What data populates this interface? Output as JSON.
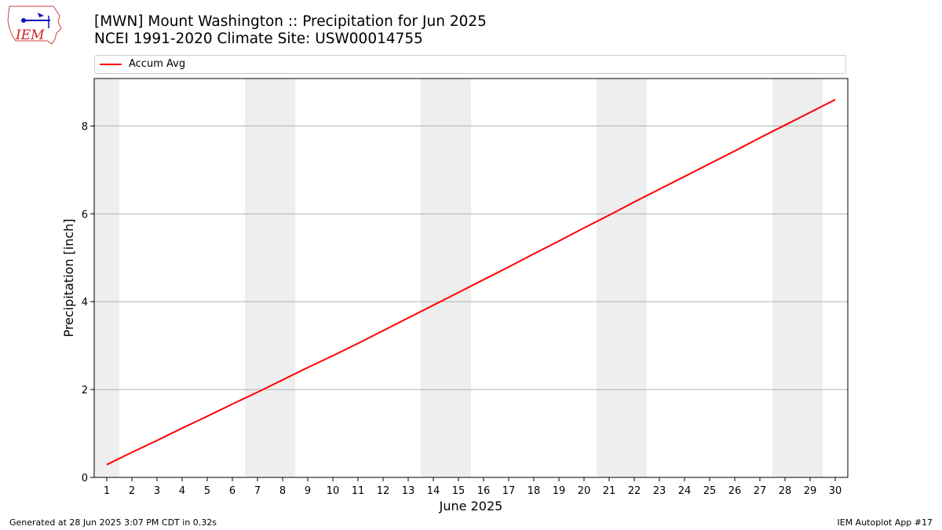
{
  "title": {
    "line1": "[MWN] Mount Washington :: Precipitation for Jun 2025",
    "line2": "NCEI 1991-2020 Climate Site: USW00014755"
  },
  "logo": {
    "text": "IEM",
    "icon": "iowa-weather-logo"
  },
  "footer": {
    "left": "Generated at 28 Jun 2025 3:07 PM CDT in 0.32s",
    "right": "IEM Autoplot App #17"
  },
  "colors": {
    "line": "#ff0000",
    "weekend": "#eeeeee",
    "grid": "#b0b0b0"
  },
  "chart_data": {
    "type": "line",
    "title": "[MWN] Mount Washington :: Precipitation for Jun 2025",
    "xlabel": "June 2025",
    "ylabel": "Precipitation [inch]",
    "xlim": [
      0.5,
      30.5
    ],
    "ylim": [
      0,
      9.08
    ],
    "yticks": [
      0,
      2,
      4,
      6,
      8
    ],
    "xticks": [
      1,
      2,
      3,
      4,
      5,
      6,
      7,
      8,
      9,
      10,
      11,
      12,
      13,
      14,
      15,
      16,
      17,
      18,
      19,
      20,
      21,
      22,
      23,
      24,
      25,
      26,
      27,
      28,
      29,
      30
    ],
    "grid": "y-major",
    "legend": "top",
    "weekend_bands": [
      [
        0.5,
        1.5
      ],
      [
        6.5,
        8.5
      ],
      [
        13.5,
        15.5
      ],
      [
        20.5,
        22.5
      ],
      [
        27.5,
        29.5
      ]
    ],
    "series": [
      {
        "name": "Accum Avg",
        "x": [
          1,
          2,
          3,
          4,
          5,
          6,
          7,
          8,
          9,
          10,
          11,
          12,
          13,
          14,
          15,
          16,
          17,
          18,
          19,
          20,
          21,
          22,
          23,
          24,
          25,
          26,
          27,
          28,
          29,
          30
        ],
        "values": [
          0.29,
          0.57,
          0.84,
          1.12,
          1.39,
          1.67,
          1.94,
          2.22,
          2.5,
          2.77,
          3.05,
          3.34,
          3.63,
          3.92,
          4.21,
          4.5,
          4.79,
          5.09,
          5.38,
          5.68,
          5.97,
          6.27,
          6.56,
          6.85,
          7.14,
          7.43,
          7.73,
          8.02,
          8.31,
          8.6
        ]
      }
    ]
  }
}
